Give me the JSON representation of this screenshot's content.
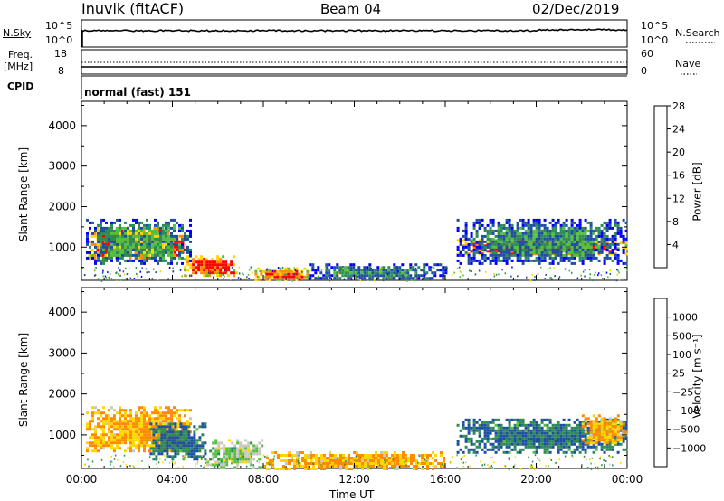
{
  "header": {
    "station": "Inuvik (fitACF)",
    "beam": "Beam 04",
    "date": "02/Dec/2019"
  },
  "strip_nsky": {
    "left_label": "N.Sky",
    "left_ticks": [
      "10^5",
      "10^0"
    ],
    "right_ticks": [
      "10^5",
      "10^0"
    ],
    "right_label": "N.Search"
  },
  "strip_freq": {
    "left_label_1": "Freq.",
    "left_label_2": "[MHz]",
    "left_ticks": [
      "18",
      "8"
    ],
    "right_ticks": [
      "60",
      "0"
    ],
    "right_label": "Nave"
  },
  "cpid": {
    "label": "CPID",
    "value": "normal (fast) 151"
  },
  "colors": {
    "red": "#ff0000",
    "orange": "#ff8c00",
    "yellow": "#ffd700",
    "green": "#55c040",
    "darkgreen": "#2e8b57",
    "blue": "#1f4fa0",
    "gray": "#c8c8c0"
  },
  "chart_data": [
    {
      "type": "heatmap",
      "panel": "power",
      "ylabel": "Slant Range [km]",
      "xlabel": "",
      "ylim": [
        180,
        4600
      ],
      "yticks": [
        "1000",
        "2000",
        "3000",
        "4000"
      ],
      "colorbar_label": "Power [dB]",
      "colorbar_ticks": [
        "4",
        "8",
        "12",
        "16",
        "20",
        "24",
        "28"
      ],
      "colorbar_colors": [
        "#0000ff",
        "#1f4fa0",
        "#2e8b57",
        "#55c040",
        "#ffd700",
        "#ff8c00",
        "#ff0000"
      ],
      "regions": [
        {
          "t0": 0.3,
          "t1": 3.8,
          "r0": 700,
          "r1": 1500,
          "value": 28
        },
        {
          "t0": 3.8,
          "t1": 4.6,
          "r0": 800,
          "r1": 1300,
          "value": 28
        },
        {
          "t0": 4.5,
          "t1": 6.8,
          "r0": 300,
          "r1": 800,
          "value": 28
        },
        {
          "t0": 7.5,
          "t1": 10.0,
          "r0": 200,
          "r1": 500,
          "value": 26
        },
        {
          "t0": 16.5,
          "t1": 24.0,
          "r0": 800,
          "r1": 1200,
          "value": 28
        },
        {
          "t0": 0.2,
          "t1": 4.8,
          "r0": 600,
          "r1": 1700,
          "value": 14
        },
        {
          "t0": 10.0,
          "t1": 16.0,
          "r0": 200,
          "r1": 600,
          "value": 12
        },
        {
          "t0": 16.5,
          "t1": 24.0,
          "r0": 600,
          "r1": 1700,
          "value": 12
        }
      ]
    },
    {
      "type": "heatmap",
      "panel": "velocity",
      "ylabel": "Slant Range [km]",
      "xlabel": "Time UT",
      "ylim": [
        180,
        4600
      ],
      "yticks": [
        "1000",
        "2000",
        "3000",
        "4000"
      ],
      "xticks": [
        "00:00",
        "04:00",
        "08:00",
        "12:00",
        "16:00",
        "20:00",
        "00:00"
      ],
      "xlim": [
        0,
        24
      ],
      "colorbar_label": "Velocity [m s⁻¹]",
      "colorbar_ticks": [
        "1000",
        "500",
        "100",
        "25",
        "−25",
        "−100",
        "−500",
        "−1000"
      ],
      "colorbar_colors": [
        "#0000ff",
        "#1f4fa0",
        "#2e8b57",
        "#55c040",
        "#c8c8c0",
        "#ffd700",
        "#ff8c00",
        "#ff6000",
        "#ff0000"
      ],
      "regions": [
        {
          "t0": 0.2,
          "t1": 4.8,
          "r0": 600,
          "r1": 1700,
          "value": -100
        },
        {
          "t0": 3.0,
          "t1": 5.5,
          "r0": 400,
          "r1": 1300,
          "value": 100
        },
        {
          "t0": 5.5,
          "t1": 8.0,
          "r0": 200,
          "r1": 900,
          "value": 0
        },
        {
          "t0": 8.0,
          "t1": 16.0,
          "r0": 200,
          "r1": 600,
          "value": -100
        },
        {
          "t0": 16.5,
          "t1": 24.0,
          "r0": 600,
          "r1": 1400,
          "value": 100
        },
        {
          "t0": 22.0,
          "t1": 24.0,
          "r0": 800,
          "r1": 1500,
          "value": -100
        }
      ]
    }
  ]
}
